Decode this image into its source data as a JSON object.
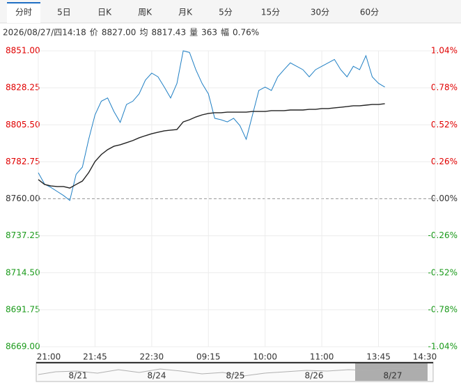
{
  "tabs": [
    "分时",
    "5日",
    "日K",
    "周K",
    "月K",
    "5分",
    "15分",
    "30分",
    "60分"
  ],
  "active_tab": 0,
  "info": {
    "time": "2026/08/27/四14:18",
    "price_label": "价",
    "price": "8827.00",
    "avg_label": "均",
    "avg": "8817.43",
    "vol_label": "量",
    "vol": "363",
    "amp_label": "幅",
    "amp": "0.76%"
  },
  "chart_data": {
    "type": "line",
    "series": [
      {
        "name": "价",
        "color": "#1f7fc4",
        "values": [
          8776,
          8769,
          8767,
          8764.5,
          8762,
          8759,
          8775,
          8779.5,
          8796.6,
          8811.6,
          8820,
          8822,
          8813.7,
          8807,
          8818,
          8820,
          8824.5,
          8833,
          8837.3,
          8835,
          8828.7,
          8822,
          8830.9,
          8851,
          8850,
          8839.4,
          8830.9,
          8824.5,
          8809.5,
          8808.6,
          8807.3,
          8809.5,
          8805,
          8796.6,
          8811.6,
          8826.6,
          8828.7,
          8826.6,
          8835,
          8839.4,
          8843.6,
          8841.5,
          8839.4,
          8835,
          8839.4,
          8841.5,
          8843.6,
          8845.7,
          8839.4,
          8835,
          8841.5,
          8839.4,
          8848,
          8835,
          8831,
          8828.7
        ]
      },
      {
        "name": "均",
        "color": "#222222",
        "values": [
          8771.8,
          8768.8,
          8767.9,
          8767.5,
          8767.5,
          8766.6,
          8768.8,
          8770.9,
          8776.1,
          8782.9,
          8787.2,
          8790.2,
          8792.3,
          8793.2,
          8794.5,
          8795.8,
          8797.5,
          8798.8,
          8800.0,
          8800.9,
          8801.8,
          8802.2,
          8802.6,
          8807.3,
          8808.6,
          8810.3,
          8811.6,
          8812.5,
          8812.9,
          8812.9,
          8813.3,
          8813.3,
          8813.3,
          8813.3,
          8813.7,
          8813.7,
          8813.7,
          8814.2,
          8814.2,
          8814.2,
          8814.6,
          8814.6,
          8814.6,
          8815.0,
          8815.0,
          8815.5,
          8815.5,
          8815.9,
          8816.3,
          8816.7,
          8817.2,
          8817.2,
          8817.6,
          8818.0,
          8818.0,
          8818.5
        ]
      }
    ],
    "xlim": [
      0,
      63
    ],
    "xticks": [
      {
        "value": 0,
        "label": "21:00"
      },
      {
        "value": 9,
        "label": "21:45"
      },
      {
        "value": 18,
        "label": "22:30"
      },
      {
        "value": 27,
        "label": "09:15"
      },
      {
        "value": 36,
        "label": "10:00"
      },
      {
        "value": 45,
        "label": "11:00"
      },
      {
        "value": 54,
        "label": "13:45"
      },
      {
        "value": 63,
        "label": "14:30"
      }
    ],
    "ylim": [
      8669,
      8851
    ],
    "yticks": [
      {
        "value": 8851,
        "label": "8851.00"
      },
      {
        "value": 8828.25,
        "label": "8828.25"
      },
      {
        "value": 8805.5,
        "label": "8805.50"
      },
      {
        "value": 8782.75,
        "label": "8782.75"
      },
      {
        "value": 8760,
        "label": "8760.00"
      },
      {
        "value": 8737.25,
        "label": "8737.25"
      },
      {
        "value": 8714.5,
        "label": "8714.50"
      },
      {
        "value": 8691.75,
        "label": "8691.75"
      },
      {
        "value": 8669,
        "label": "8669.00"
      }
    ],
    "y2lim": [
      -1.04,
      1.04
    ],
    "y2ticks": [
      {
        "value": 1.04,
        "label": "1.04%"
      },
      {
        "value": 0.78,
        "label": "0.78%"
      },
      {
        "value": 0.52,
        "label": "0.52%"
      },
      {
        "value": 0.26,
        "label": "0.26%"
      },
      {
        "value": 0,
        "label": "0.00%"
      },
      {
        "value": -0.26,
        "label": "-0.26%"
      },
      {
        "value": -0.52,
        "label": "-0.52%"
      },
      {
        "value": -0.78,
        "label": "-0.78%"
      },
      {
        "value": -1.04,
        "label": "-1.04%"
      }
    ],
    "up_color": "#e00000",
    "down_color": "#1a9a1a",
    "flat_color": "#333333",
    "grid": true,
    "navigator": [
      "8/21",
      "8/24",
      "8/25",
      "8/26",
      "8/27"
    ]
  }
}
